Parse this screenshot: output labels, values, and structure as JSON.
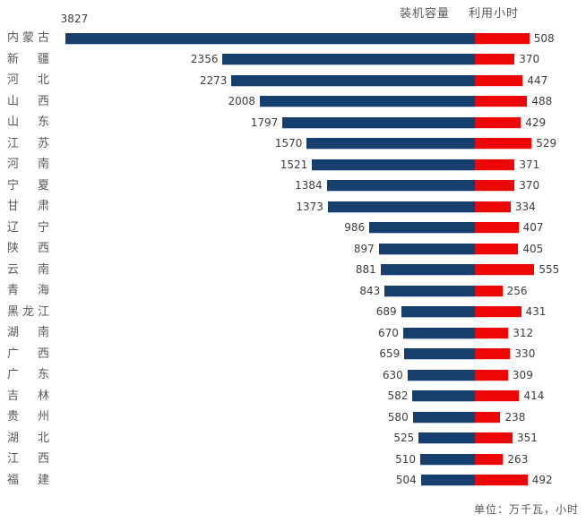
{
  "legend": {
    "capacity_label": "装机容量",
    "hours_label": "利用小时"
  },
  "footnote": "单位：万千瓦，小时",
  "colors": {
    "capacity_bar": "#163f6e",
    "hours_bar": "#ee0606",
    "category_text": "#595959",
    "value_text": "#3d3d3d",
    "background": "#ffffff"
  },
  "chart_data": {
    "type": "bar",
    "orientation": "horizontal-diverging",
    "title": "",
    "legend_position": "top-right",
    "unit_note": "单位：万千瓦，小时",
    "categories": [
      "内蒙古",
      "新疆",
      "河北",
      "山西",
      "山东",
      "江苏",
      "河南",
      "宁夏",
      "甘肃",
      "辽宁",
      "陕西",
      "云南",
      "青海",
      "黑龙江",
      "湖南",
      "广西",
      "广东",
      "吉林",
      "贵州",
      "湖北",
      "江西",
      "福建"
    ],
    "series": [
      {
        "name": "装机容量",
        "unit": "万千瓦",
        "color": "#163f6e",
        "direction": "left",
        "values": [
          3827,
          2356,
          2273,
          2008,
          1797,
          1570,
          1521,
          1384,
          1373,
          986,
          897,
          881,
          843,
          689,
          670,
          659,
          630,
          582,
          580,
          525,
          510,
          504
        ]
      },
      {
        "name": "利用小时",
        "unit": "小时",
        "color": "#ee0606",
        "direction": "right",
        "values": [
          508,
          370,
          447,
          488,
          429,
          529,
          371,
          370,
          334,
          407,
          405,
          555,
          256,
          431,
          312,
          330,
          309,
          414,
          238,
          351,
          263,
          492
        ]
      }
    ]
  }
}
